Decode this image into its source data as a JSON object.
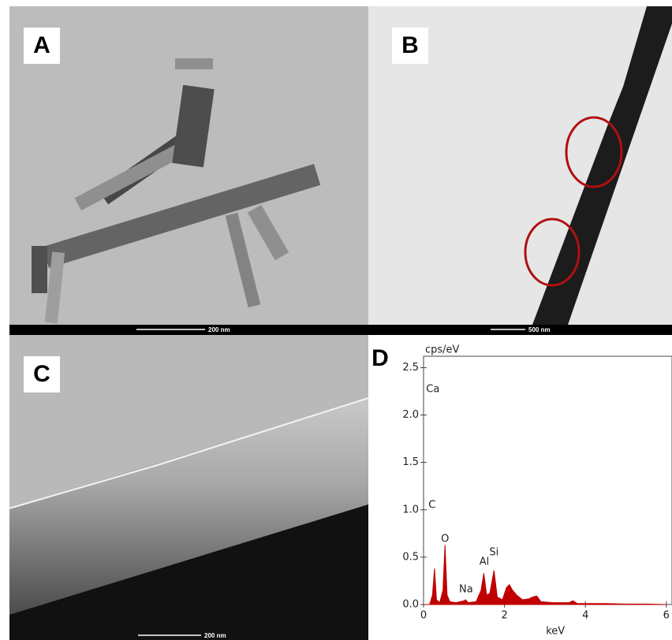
{
  "panels": [
    {
      "label": "A",
      "scale_bar": "200 nm"
    },
    {
      "label": "B",
      "scale_bar": "500 nm"
    },
    {
      "label": "C",
      "scale_bar": "200 nm"
    },
    {
      "label": "D"
    }
  ],
  "chart_data": {
    "type": "area",
    "color": "#c00000",
    "ylabel": "cps/eV",
    "xlabel": "keV",
    "xlim": [
      0,
      6.14
    ],
    "ylim": [
      0,
      2.62
    ],
    "xticks": [
      0,
      2,
      4,
      6
    ],
    "yticks": [
      {
        "value": 0,
        "label": "0.0"
      },
      0.5,
      {
        "value": 1,
        "label": "1.0"
      },
      1.5,
      {
        "value": 2,
        "label": "2.0"
      },
      2.5
    ],
    "x": [
      0,
      0.15,
      0.22,
      0.27,
      0.32,
      0.4,
      0.48,
      0.53,
      0.58,
      0.65,
      0.8,
      1.0,
      1.04,
      1.1,
      1.3,
      1.42,
      1.49,
      1.56,
      1.64,
      1.74,
      1.82,
      1.95,
      2.05,
      2.12,
      2.2,
      2.3,
      2.45,
      2.6,
      2.7,
      2.8,
      2.9,
      3.2,
      3.6,
      3.69,
      3.8,
      4.0,
      4.5,
      5.0,
      5.5,
      6.0
    ],
    "values": [
      0,
      0,
      0.1,
      0.38,
      0.05,
      0.02,
      0.15,
      0.63,
      0.1,
      0.03,
      0.02,
      0.04,
      0.05,
      0.02,
      0.03,
      0.15,
      0.33,
      0.1,
      0.12,
      0.36,
      0.08,
      0.05,
      0.18,
      0.21,
      0.15,
      0.1,
      0.05,
      0.06,
      0.08,
      0.09,
      0.03,
      0.02,
      0.02,
      0.04,
      0.01,
      0.01,
      0.01,
      0.005,
      0.005,
      0
    ],
    "annotations": [
      {
        "text": "Ca",
        "x": 0.23,
        "y": 2.27
      },
      {
        "text": "C",
        "x": 0.21,
        "y": 1.05
      },
      {
        "text": "O",
        "x": 0.53,
        "y": 0.69
      },
      {
        "text": "Na",
        "x": 1.05,
        "y": 0.16
      },
      {
        "text": "Al",
        "x": 1.5,
        "y": 0.45
      },
      {
        "text": "Si",
        "x": 1.74,
        "y": 0.55
      }
    ]
  }
}
